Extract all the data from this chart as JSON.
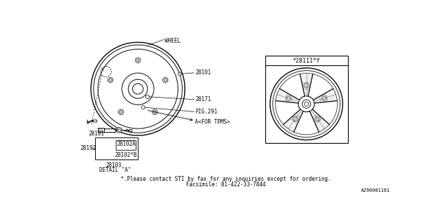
{
  "bg_color": "#ffffff",
  "footer_line1": "*.Please contact STI by fax for any inquiries except for ordering.",
  "footer_line2": "Facsimile: 81-422-33-7844",
  "ref_code": "A290001161",
  "part_label_wheel": "WHEEL",
  "part_28101_top": "28101",
  "part_28171": "28171",
  "part_fig291": "FIG.291",
  "part_tpms": "A<FOR TPMS>",
  "part_28101_bot": "28101",
  "part_28192": "28192",
  "part_28102A": "28102A",
  "part_28102B": "28102*B",
  "part_28103": "28103",
  "detail_label": "DETAIL \"A\"",
  "inset_label": "*28111*Y",
  "line_color": "#000000",
  "text_color": "#000000",
  "font_size_label": 5.5,
  "font_size_footer": 5.5,
  "font_size_ref": 5.0
}
